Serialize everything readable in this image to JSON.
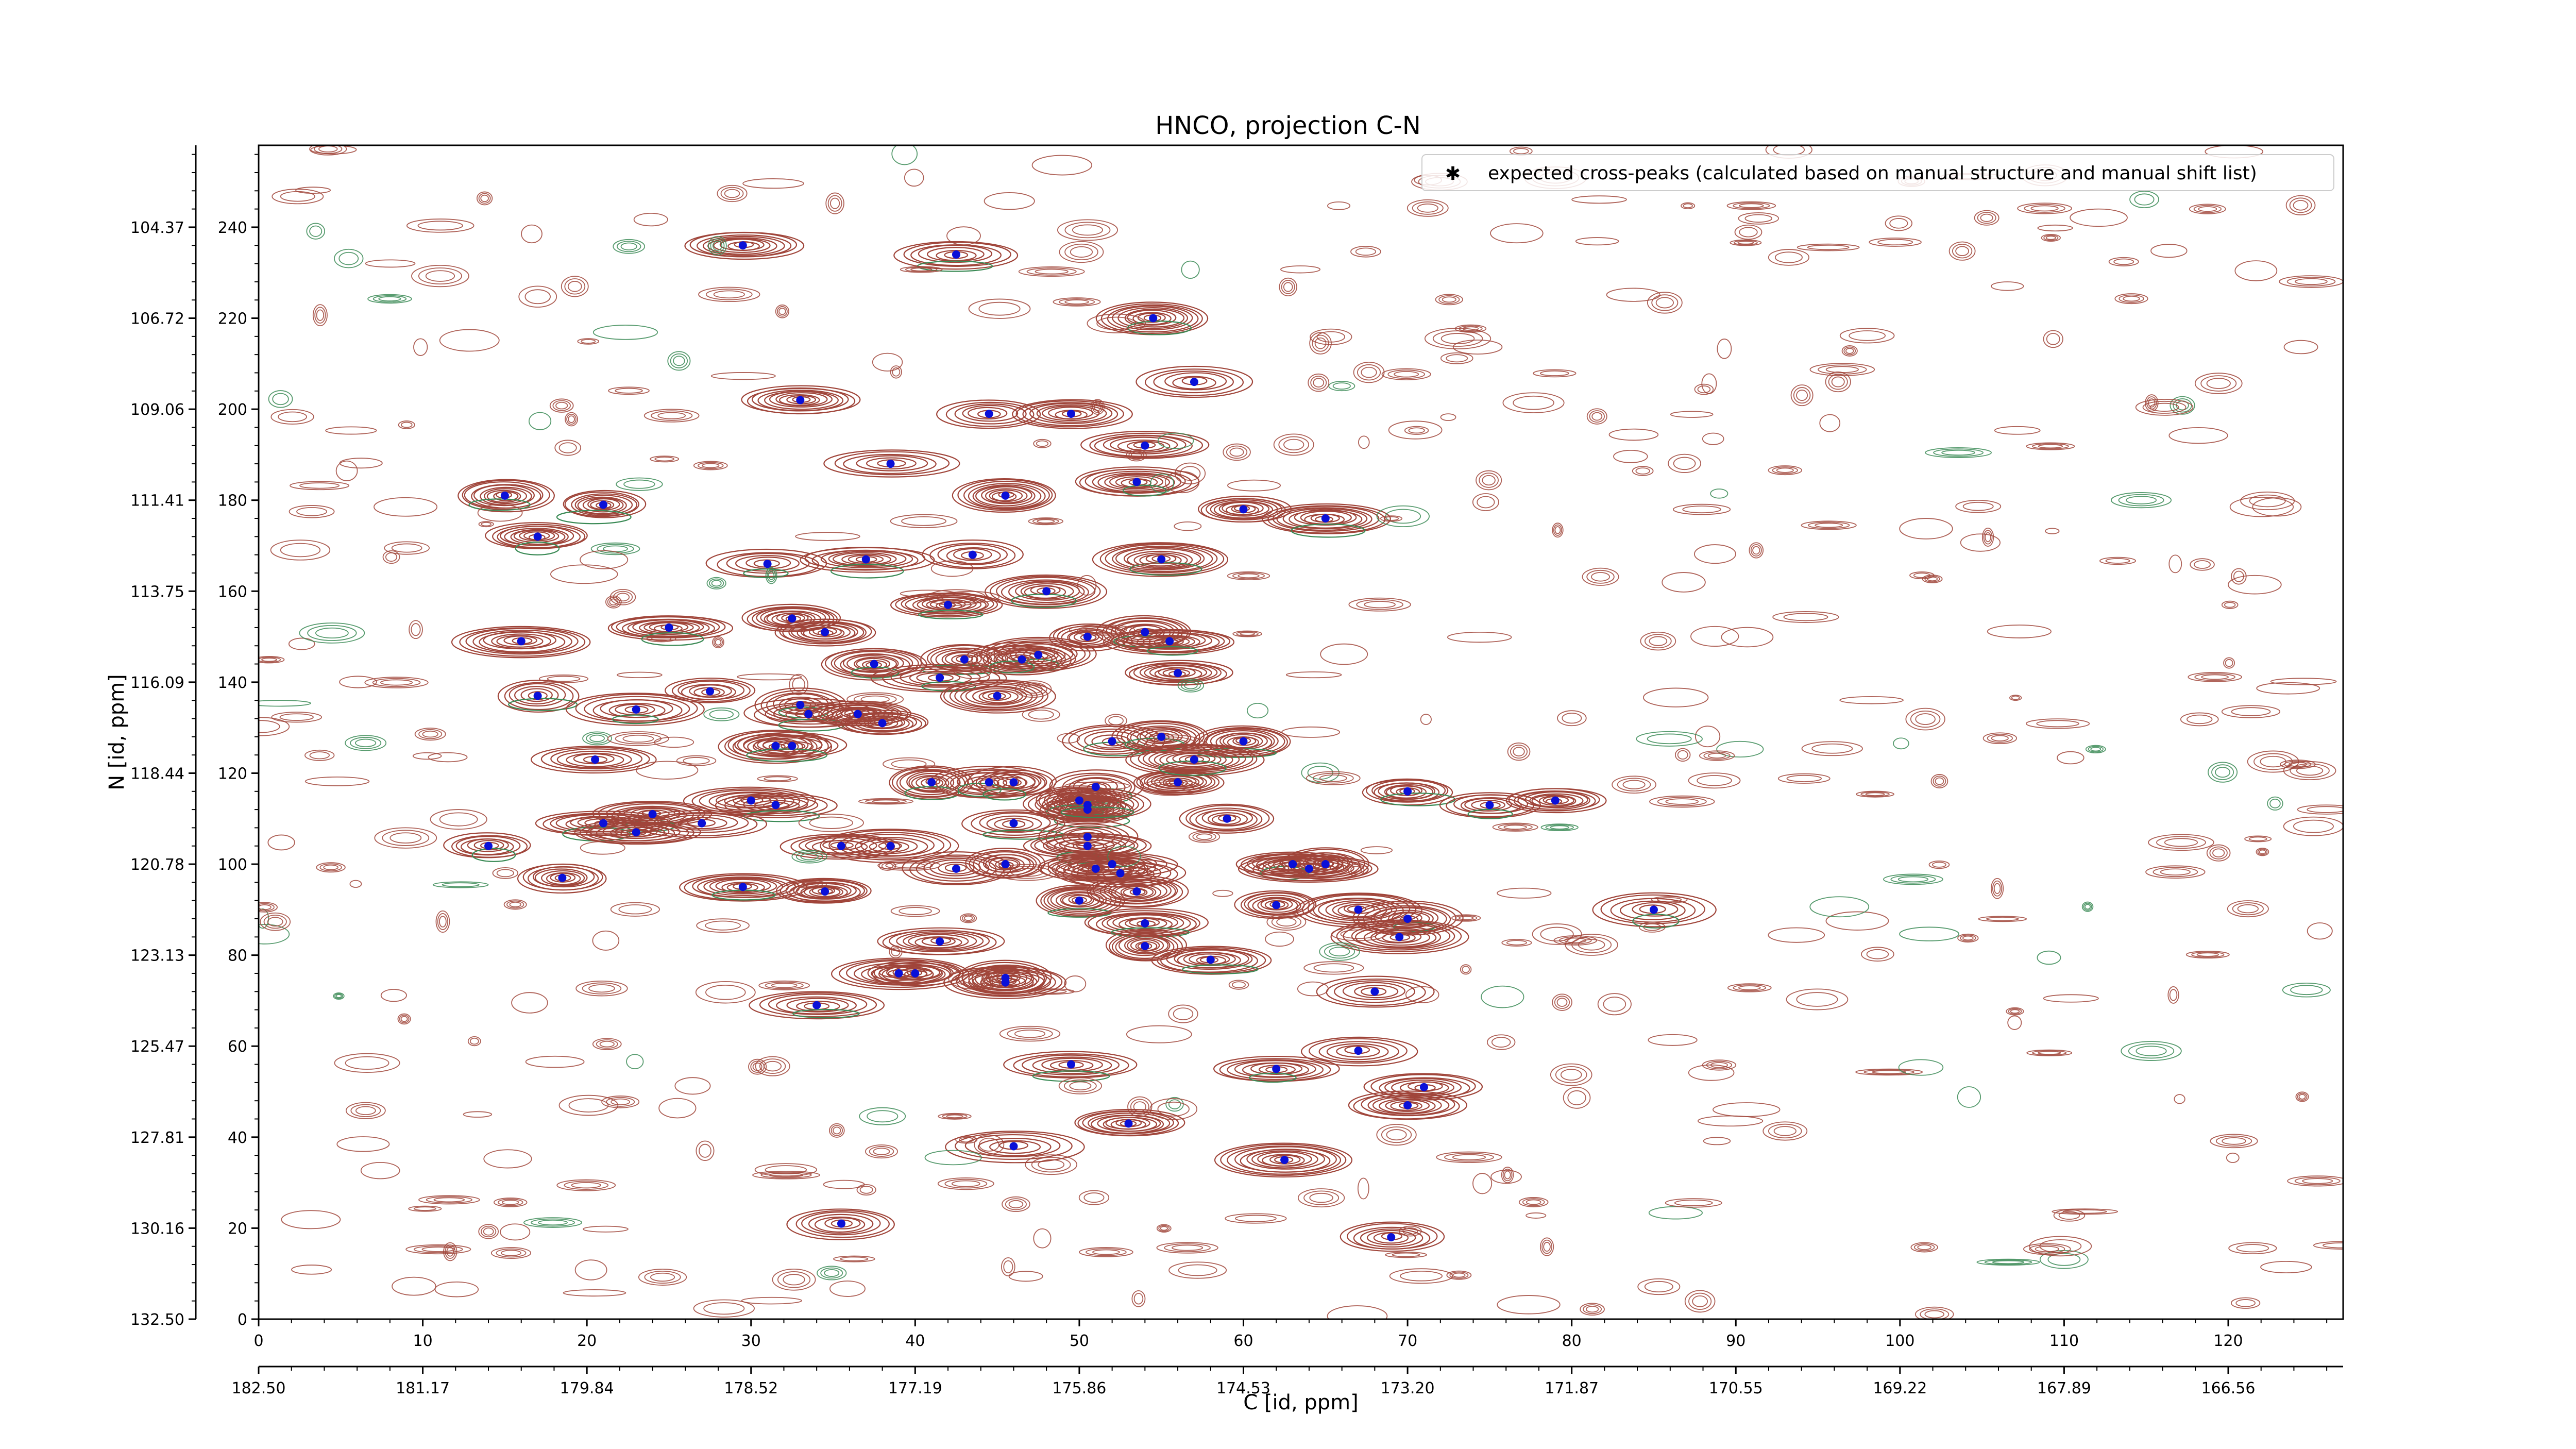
{
  "chart_data": {
    "type": "scatter",
    "title": "HNCO, projection C-N",
    "xlabel": "C [id, ppm]",
    "ylabel": "N [id, ppm]",
    "xlim": [
      0,
      127
    ],
    "ylim": [
      0,
      258
    ],
    "x_ticks": [
      0,
      10,
      20,
      30,
      40,
      50,
      60,
      70,
      80,
      90,
      100,
      110,
      120
    ],
    "y_ticks": [
      0,
      20,
      40,
      60,
      80,
      100,
      120,
      140,
      160,
      180,
      200,
      220,
      240
    ],
    "x_ppm_labels": [
      "182.50",
      "181.17",
      "179.84",
      "178.52",
      "177.19",
      "175.86",
      "174.53",
      "173.20",
      "171.87",
      "170.55",
      "169.22",
      "167.89",
      "166.56"
    ],
    "y_ppm_labels": [
      "132.50",
      "130.16",
      "127.81",
      "125.47",
      "123.13",
      "120.78",
      "118.44",
      "116.09",
      "113.75",
      "111.41",
      "109.06",
      "106.72",
      "104.37"
    ],
    "grid": false,
    "legend": {
      "position": "top-right",
      "label": "expected cross-peaks (calculated based on manual structure and manual shift list)"
    },
    "colors": {
      "positive_contour": "#a0453a",
      "negative_contour": "#3a8a55",
      "marker": "#0a10d8"
    },
    "series": [
      {
        "name": "expected cross-peaks (calculated based on manual structure and manual shift list)",
        "points": [
          [
            29.5,
            236
          ],
          [
            42.5,
            234
          ],
          [
            54.5,
            220
          ],
          [
            57,
            206
          ],
          [
            33,
            202
          ],
          [
            44.5,
            199
          ],
          [
            49.5,
            199
          ],
          [
            54,
            192
          ],
          [
            38.5,
            188
          ],
          [
            53.5,
            184
          ],
          [
            45.5,
            181
          ],
          [
            15,
            181
          ],
          [
            21,
            179
          ],
          [
            60,
            178
          ],
          [
            65,
            176
          ],
          [
            17,
            172
          ],
          [
            31,
            166
          ],
          [
            37,
            167
          ],
          [
            43.5,
            168
          ],
          [
            55,
            167
          ],
          [
            48,
            160
          ],
          [
            42,
            157
          ],
          [
            32.5,
            154
          ],
          [
            25,
            152
          ],
          [
            50.5,
            150
          ],
          [
            34.5,
            151
          ],
          [
            54,
            151
          ],
          [
            55.5,
            149
          ],
          [
            16,
            149
          ],
          [
            43,
            145
          ],
          [
            47.5,
            146
          ],
          [
            46.5,
            145
          ],
          [
            37.5,
            144
          ],
          [
            56,
            142
          ],
          [
            41.5,
            141
          ],
          [
            17,
            137
          ],
          [
            27.5,
            138
          ],
          [
            45,
            137
          ],
          [
            23,
            134
          ],
          [
            33,
            135
          ],
          [
            33.5,
            133
          ],
          [
            36.5,
            133
          ],
          [
            38,
            131
          ],
          [
            52,
            127
          ],
          [
            55,
            128
          ],
          [
            60,
            127
          ],
          [
            31.5,
            126
          ],
          [
            32.5,
            126
          ],
          [
            20.5,
            123
          ],
          [
            41,
            118
          ],
          [
            44.5,
            118
          ],
          [
            46,
            118
          ],
          [
            56,
            118
          ],
          [
            51,
            117
          ],
          [
            57,
            123
          ],
          [
            70,
            116
          ],
          [
            30,
            114
          ],
          [
            31.5,
            113
          ],
          [
            50.5,
            112
          ],
          [
            50,
            114
          ],
          [
            50.5,
            113
          ],
          [
            24,
            111
          ],
          [
            27,
            109
          ],
          [
            14,
            104
          ],
          [
            21,
            109
          ],
          [
            23,
            107
          ],
          [
            35.5,
            104
          ],
          [
            38.5,
            104
          ],
          [
            50.5,
            104
          ],
          [
            46,
            109
          ],
          [
            59,
            110
          ],
          [
            79,
            114
          ],
          [
            75,
            113
          ],
          [
            42.5,
            99
          ],
          [
            45.5,
            100
          ],
          [
            51,
            99
          ],
          [
            52,
            100
          ],
          [
            52.5,
            98
          ],
          [
            50.5,
            106
          ],
          [
            63,
            100
          ],
          [
            64,
            99
          ],
          [
            65,
            100
          ],
          [
            18.5,
            97
          ],
          [
            29.5,
            95
          ],
          [
            34.5,
            94
          ],
          [
            53.5,
            94
          ],
          [
            50,
            92
          ],
          [
            62,
            91
          ],
          [
            67,
            90
          ],
          [
            70,
            88
          ],
          [
            85,
            90
          ],
          [
            54,
            87
          ],
          [
            54,
            82
          ],
          [
            41.5,
            83
          ],
          [
            58,
            79
          ],
          [
            69.5,
            84
          ],
          [
            39,
            76
          ],
          [
            40,
            76
          ],
          [
            45.5,
            75
          ],
          [
            45.5,
            74
          ],
          [
            68,
            72
          ],
          [
            34,
            69
          ],
          [
            49.5,
            56
          ],
          [
            67,
            59
          ],
          [
            62,
            55
          ],
          [
            71,
            51
          ],
          [
            70,
            47
          ],
          [
            53,
            43
          ],
          [
            46,
            38
          ],
          [
            62.5,
            35
          ],
          [
            35.5,
            21
          ],
          [
            69,
            18
          ]
        ]
      }
    ]
  }
}
